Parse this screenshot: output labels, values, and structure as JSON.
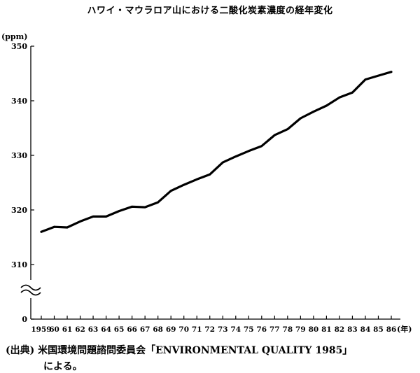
{
  "chart_data": {
    "type": "line",
    "title": "ハワイ・マウラロア山における二酸化炭素濃度の経年変化",
    "xlabel": "",
    "ylabel": "",
    "y_unit_label": "(ppm)",
    "x_unit_label": "(年)",
    "x_tick_labels": [
      "1959",
      "60",
      "61",
      "62",
      "63",
      "64",
      "65",
      "66",
      "67",
      "68",
      "69",
      "70",
      "71",
      "72",
      "73",
      "74",
      "75",
      "76",
      "77",
      "78",
      "79",
      "80",
      "81",
      "82",
      "83",
      "84",
      "85",
      "86"
    ],
    "y_ticks": [
      "0",
      "310",
      "320",
      "330",
      "340",
      "350"
    ],
    "axis_break": true,
    "ylim": [
      310,
      350
    ],
    "grid": false,
    "series": [
      {
        "x": [
          1959,
          1960,
          1961,
          1962,
          1963,
          1964,
          1965,
          1966,
          1967,
          1968,
          1969,
          1970,
          1971,
          1972,
          1973,
          1974,
          1975,
          1976,
          1977,
          1978,
          1979,
          1980,
          1981,
          1982,
          1983,
          1984,
          1985,
          1986
        ],
        "values": [
          316.0,
          316.9,
          316.8,
          317.9,
          318.8,
          318.8,
          319.8,
          320.6,
          320.5,
          321.4,
          323.5,
          324.6,
          325.6,
          326.5,
          328.7,
          329.8,
          330.8,
          331.7,
          333.7,
          334.8,
          336.8,
          338.0,
          339.1,
          340.6,
          341.5,
          343.9,
          344.6,
          345.3
        ]
      }
    ]
  },
  "source": {
    "line1": "(出典)  米国環境問題諮問委員会「ENVIRONMENTAL QUALITY 1985」",
    "line2": "による。"
  }
}
